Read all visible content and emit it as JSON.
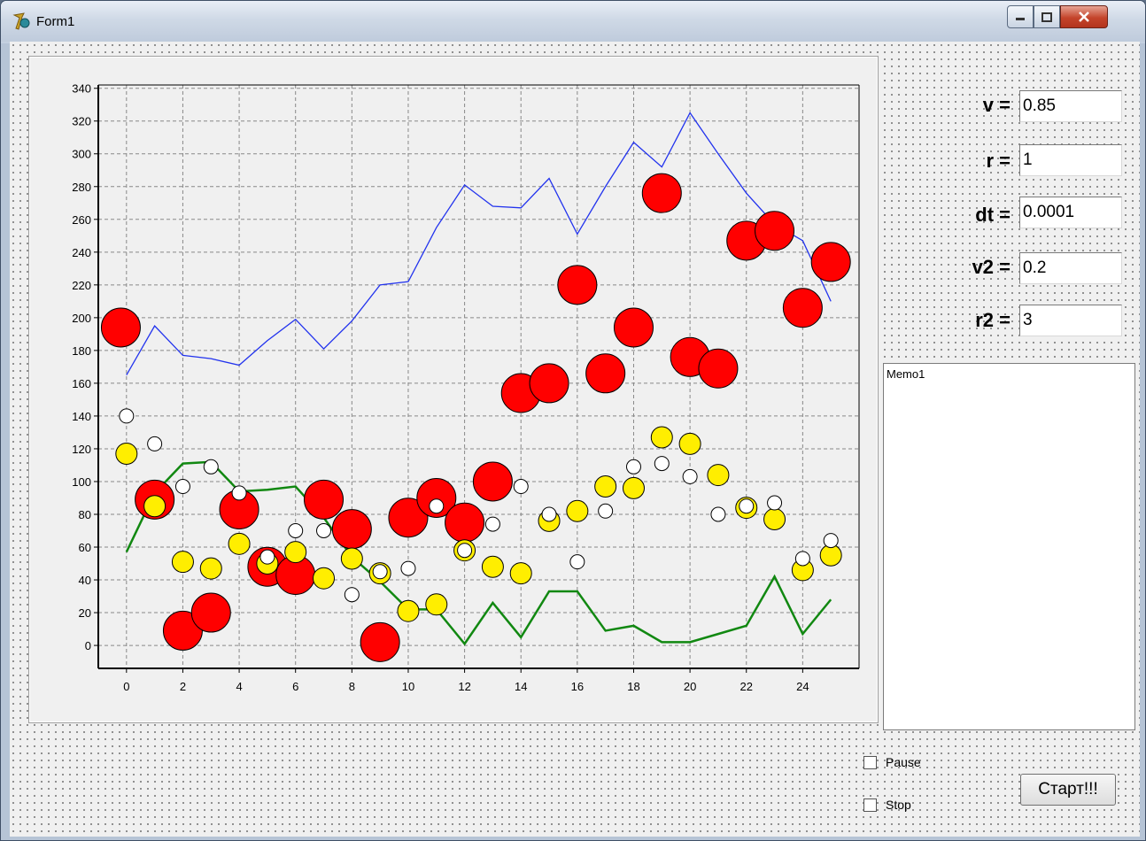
{
  "window": {
    "title": "Form1",
    "app_icon": "delphi-helmet-icon",
    "controls": [
      "minimize-icon",
      "maximize-icon",
      "close-icon"
    ]
  },
  "params": [
    {
      "label": "v =",
      "value": "0.85"
    },
    {
      "label": "r =",
      "value": "1"
    },
    {
      "label": "dt =",
      "value": "0.0001"
    },
    {
      "label": "v2 =",
      "value": "0.2"
    },
    {
      "label": "r2 =",
      "value": "3"
    }
  ],
  "memo": {
    "text": "Memo1"
  },
  "checkboxes": {
    "pause": {
      "label": "Pause",
      "checked": false
    },
    "stop": {
      "label": "Stop",
      "checked": false
    }
  },
  "start_button": {
    "label": "Старт!!!"
  },
  "chart_data": {
    "type": "line",
    "xlim": [
      -1,
      26
    ],
    "ylim": [
      -14,
      342
    ],
    "x_ticks": [
      0,
      2,
      4,
      6,
      8,
      10,
      12,
      14,
      16,
      18,
      20,
      22,
      24
    ],
    "y_ticks": [
      0,
      20,
      40,
      60,
      80,
      100,
      120,
      140,
      160,
      180,
      200,
      220,
      240,
      260,
      280,
      300,
      320,
      340
    ],
    "grid": true,
    "series": [
      {
        "color": "#2233ee",
        "x": [
          0,
          1,
          2,
          3,
          4,
          5,
          6,
          7,
          8,
          9,
          10,
          11,
          12,
          13,
          14,
          15,
          16,
          17,
          18,
          19,
          20,
          21,
          22,
          23,
          24,
          25
        ],
        "y": [
          165,
          195,
          177,
          175,
          171,
          186,
          199,
          181,
          198,
          220,
          222,
          255,
          281,
          268,
          267,
          285,
          251,
          280,
          307,
          292,
          325,
          300,
          276,
          257,
          247,
          210
        ]
      },
      {
        "color": "#118811",
        "x": [
          0,
          1,
          2,
          3,
          4,
          5,
          6,
          7,
          8,
          9,
          10,
          11,
          12,
          13,
          14,
          15,
          16,
          17,
          18,
          19,
          20,
          21,
          22,
          23,
          24,
          25
        ],
        "y": [
          57,
          93,
          111,
          112,
          94,
          95,
          97,
          78,
          54,
          39,
          22,
          22,
          1,
          26,
          5,
          33,
          33,
          9,
          12,
          2,
          2,
          7,
          12,
          42,
          7,
          28
        ]
      }
    ],
    "markers": {
      "red_large": {
        "color": "#ff0000",
        "points": [
          [
            -0.2,
            194
          ],
          [
            1,
            89
          ],
          [
            2,
            9
          ],
          [
            3,
            20
          ],
          [
            4,
            83
          ],
          [
            5,
            48
          ],
          [
            6,
            43
          ],
          [
            7,
            89
          ],
          [
            8,
            71
          ],
          [
            9,
            2
          ],
          [
            10,
            78
          ],
          [
            11,
            90
          ],
          [
            12,
            75
          ],
          [
            13,
            100
          ],
          [
            14,
            154
          ],
          [
            15,
            160
          ],
          [
            16,
            220
          ],
          [
            17,
            166
          ],
          [
            18,
            194
          ],
          [
            19,
            276
          ],
          [
            20,
            176
          ],
          [
            21,
            169
          ],
          [
            22,
            247
          ],
          [
            23,
            253
          ],
          [
            24,
            206
          ],
          [
            25,
            234
          ]
        ]
      },
      "yellow": {
        "color": "#ffee00",
        "points": [
          [
            0,
            117
          ],
          [
            1,
            85
          ],
          [
            2,
            51
          ],
          [
            3,
            47
          ],
          [
            4,
            62
          ],
          [
            5,
            50
          ],
          [
            6,
            57
          ],
          [
            7,
            41
          ],
          [
            8,
            53
          ],
          [
            9,
            44
          ],
          [
            10,
            21
          ],
          [
            11,
            25
          ],
          [
            12,
            58
          ],
          [
            13,
            48
          ],
          [
            14,
            44
          ],
          [
            15,
            76
          ],
          [
            16,
            82
          ],
          [
            17,
            97
          ],
          [
            18,
            96
          ],
          [
            19,
            127
          ],
          [
            20,
            123
          ],
          [
            21,
            104
          ],
          [
            22,
            84
          ],
          [
            23,
            77
          ],
          [
            24,
            46
          ],
          [
            25,
            55
          ]
        ]
      },
      "white": {
        "color": "#ffffff",
        "points": [
          [
            0,
            140
          ],
          [
            1,
            123
          ],
          [
            2,
            97
          ],
          [
            3,
            109
          ],
          [
            4,
            93
          ],
          [
            5,
            54
          ],
          [
            6,
            70
          ],
          [
            7,
            70
          ],
          [
            8,
            31
          ],
          [
            9,
            45
          ],
          [
            10,
            47
          ],
          [
            11,
            85
          ],
          [
            12,
            58
          ],
          [
            13,
            74
          ],
          [
            14,
            97
          ],
          [
            15,
            80
          ],
          [
            16,
            51
          ],
          [
            17,
            82
          ],
          [
            18,
            109
          ],
          [
            19,
            111
          ],
          [
            20,
            103
          ],
          [
            21,
            80
          ],
          [
            22,
            85
          ],
          [
            23,
            87
          ],
          [
            24,
            53
          ],
          [
            25,
            64
          ]
        ]
      }
    }
  }
}
